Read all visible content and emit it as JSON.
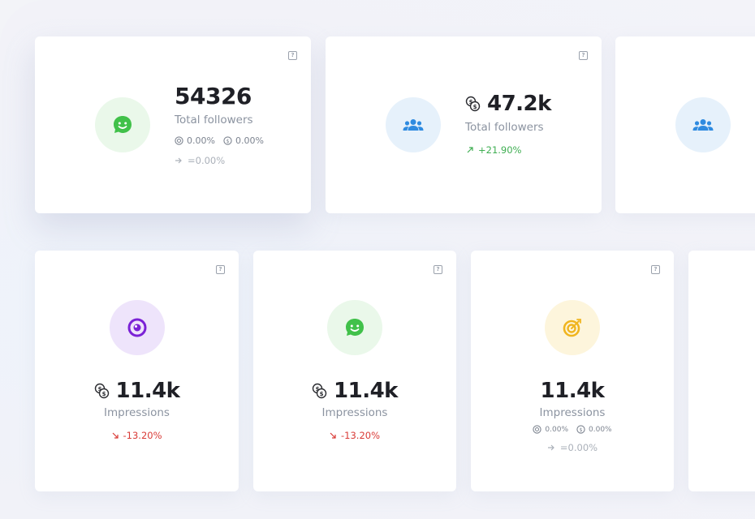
{
  "cards_top": [
    {
      "value": "54326",
      "label": "Total followers",
      "stat1": "0.00%",
      "stat2": "0.00%",
      "trend": "=0.00%",
      "help": "?"
    },
    {
      "value": "47.2k",
      "label": "Total followers",
      "trend": "+21.90%",
      "help": "?"
    }
  ],
  "cards_bottom": [
    {
      "value": "11.4k",
      "label": "Impressions",
      "trend": "-13.20%",
      "help": "?"
    },
    {
      "value": "11.4k",
      "label": "Impressions",
      "trend": "-13.20%",
      "help": "?"
    },
    {
      "value": "11.4k",
      "label": "Impressions",
      "stat1": "0.00%",
      "stat2": "0.00%",
      "trend": "=0.00%",
      "help": "?"
    }
  ],
  "colors": {
    "green": "#41c14a",
    "blue": "#2f8be0",
    "purple": "#7b22d6",
    "yellow": "#f0b51f",
    "up": "#3fae52",
    "down": "#d93a36"
  },
  "icons": [
    "smile-chat-icon",
    "users-icon",
    "eye-target-icon",
    "dart-target-icon",
    "coins-icon",
    "arrow-right-icon",
    "arrow-up-right-icon",
    "arrow-down-right-icon",
    "help-icon"
  ]
}
